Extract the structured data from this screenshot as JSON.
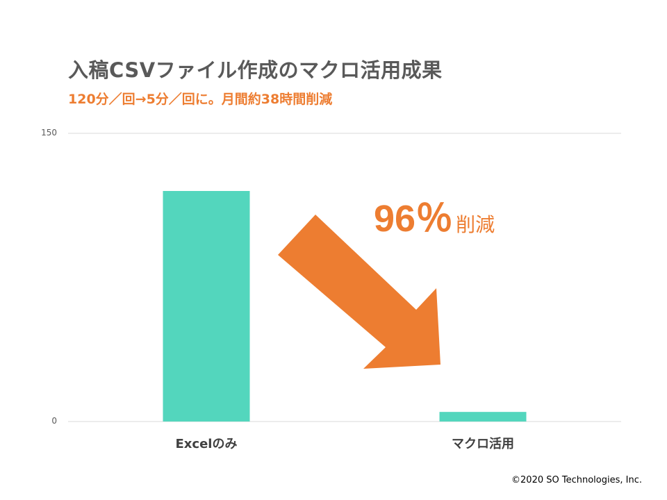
{
  "title": "入稿CSVファイル作成のマクロ活用成果",
  "subtitle": "120分／回→5分／回に。月間約38時間削減",
  "callout": {
    "value": "96％",
    "suffix": "削減"
  },
  "copyright": "©2020 SO Technologies, Inc.",
  "colors": {
    "bar": "#53d6bd",
    "accent": "#ed7d31",
    "grid": "#d9d9d9"
  },
  "chart_data": {
    "type": "bar",
    "categories": [
      "Excelのみ",
      "マクロ活用"
    ],
    "values": [
      120,
      5
    ],
    "ylim": [
      0,
      150
    ],
    "yticks": [
      0,
      150
    ],
    "grid": true
  }
}
